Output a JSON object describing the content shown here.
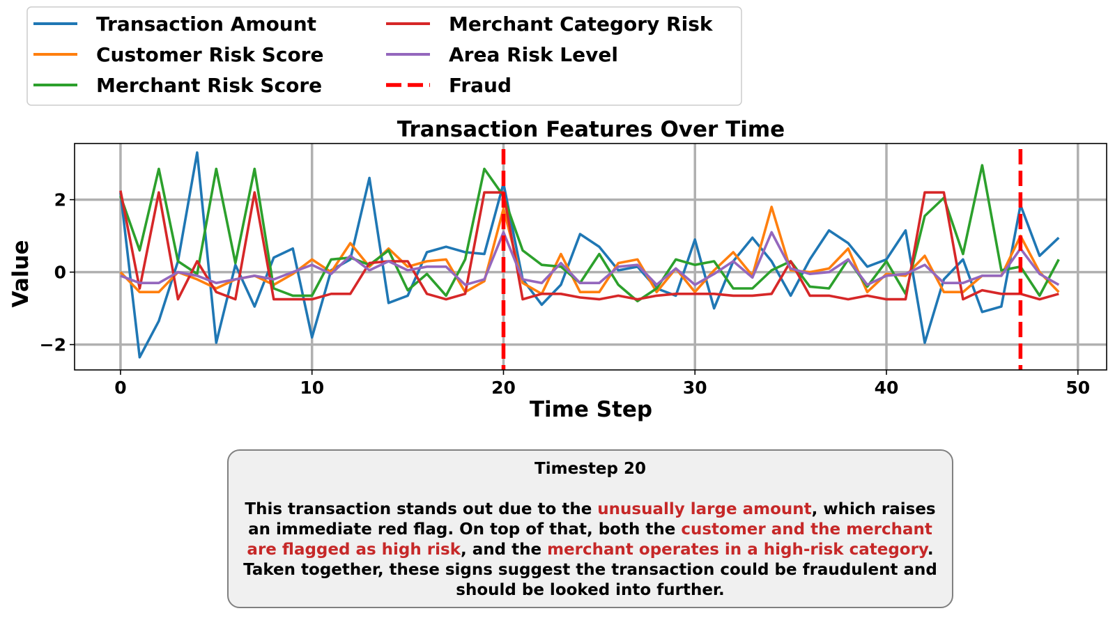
{
  "colors": {
    "Transaction Amount": "#1f77b4",
    "Customer Risk Score": "#ff7f0e",
    "Merchant Risk Score": "#2ca02c",
    "Merchant Category Risk": "#d62728",
    "Area Risk Level": "#9467bd",
    "Fraud": "#ff0000",
    "highlight_text": "#c62828",
    "annotation_bg": "#f0f0f0",
    "annotation_border": "#808080",
    "grid": "#b0b0b0"
  },
  "chart_data": {
    "type": "line",
    "title": "Transaction Features Over Time",
    "xlabel": "Time Step",
    "ylabel": "Value",
    "xlim": [
      -2.4,
      51.5
    ],
    "ylim": [
      -2.7,
      3.55
    ],
    "xticks": [
      0,
      10,
      20,
      30,
      40,
      50
    ],
    "yticks": [
      -2,
      0,
      2
    ],
    "ytick_labels": [
      "−2",
      "0",
      "2"
    ],
    "grid": true,
    "legend": {
      "placement": "top-left, above chart",
      "columns": 2,
      "entries": [
        "Transaction Amount",
        "Customer Risk Score",
        "Merchant Risk Score",
        "Merchant Category Risk",
        "Area Risk Level",
        "Fraud"
      ]
    },
    "x": [
      0,
      1,
      2,
      3,
      4,
      5,
      6,
      7,
      8,
      9,
      10,
      11,
      12,
      13,
      14,
      15,
      16,
      17,
      18,
      19,
      20,
      21,
      22,
      23,
      24,
      25,
      26,
      27,
      28,
      29,
      30,
      31,
      32,
      33,
      34,
      35,
      36,
      37,
      38,
      39,
      40,
      41,
      42,
      43,
      44,
      45,
      46,
      47,
      48,
      49
    ],
    "series": [
      {
        "name": "Transaction Amount",
        "values": [
          2.2,
          -2.35,
          -1.35,
          0.3,
          3.3,
          -1.95,
          0.2,
          -0.95,
          0.4,
          0.65,
          -1.8,
          0.05,
          0.35,
          2.6,
          -0.85,
          -0.65,
          0.55,
          0.7,
          0.55,
          0.5,
          2.45,
          -0.2,
          -0.9,
          -0.35,
          1.05,
          0.7,
          0.05,
          0.15,
          -0.45,
          -0.65,
          0.9,
          -1.0,
          0.3,
          0.95,
          0.3,
          -0.65,
          0.35,
          1.15,
          0.8,
          0.15,
          0.35,
          1.15,
          -1.95,
          -0.2,
          0.35,
          -1.1,
          -0.95,
          1.85,
          0.45,
          0.95
        ]
      },
      {
        "name": "Customer Risk Score",
        "values": [
          0.0,
          -0.55,
          -0.55,
          0.0,
          -0.2,
          -0.45,
          -0.2,
          -0.1,
          -0.35,
          -0.05,
          0.35,
          0.0,
          0.8,
          0.15,
          0.65,
          0.15,
          0.3,
          0.35,
          -0.55,
          -0.25,
          1.75,
          -0.3,
          -0.6,
          0.5,
          -0.55,
          -0.55,
          0.25,
          0.35,
          -0.55,
          0.1,
          -0.55,
          0.05,
          0.55,
          -0.1,
          1.8,
          0.05,
          0.0,
          0.1,
          0.65,
          -0.55,
          -0.05,
          -0.1,
          0.45,
          -0.55,
          -0.55,
          -0.1,
          -0.1,
          1.0,
          0.0,
          -0.55
        ]
      },
      {
        "name": "Merchant Risk Score",
        "values": [
          2.1,
          0.6,
          2.85,
          0.3,
          -0.05,
          2.85,
          0.25,
          2.85,
          -0.45,
          -0.65,
          -0.65,
          0.35,
          0.4,
          0.2,
          0.6,
          -0.5,
          -0.05,
          -0.65,
          0.35,
          2.85,
          2.1,
          0.6,
          0.2,
          0.15,
          -0.3,
          0.5,
          -0.35,
          -0.8,
          -0.45,
          0.35,
          0.2,
          0.3,
          -0.45,
          -0.45,
          0.05,
          0.3,
          -0.4,
          -0.45,
          0.35,
          -0.4,
          0.3,
          -0.6,
          1.55,
          2.05,
          0.5,
          2.95,
          0.05,
          0.15,
          -0.65,
          0.35
        ]
      },
      {
        "name": "Merchant Category Risk",
        "values": [
          2.25,
          -0.45,
          2.2,
          -0.75,
          0.3,
          -0.55,
          -0.75,
          2.2,
          -0.75,
          -0.75,
          -0.75,
          -0.6,
          -0.6,
          0.25,
          0.3,
          0.3,
          -0.6,
          -0.75,
          -0.6,
          2.2,
          2.2,
          -0.75,
          -0.6,
          -0.6,
          -0.7,
          -0.75,
          -0.65,
          -0.75,
          -0.65,
          -0.6,
          -0.6,
          -0.6,
          -0.65,
          -0.65,
          -0.6,
          0.3,
          -0.65,
          -0.65,
          -0.75,
          -0.65,
          -0.75,
          -0.75,
          2.2,
          2.2,
          -0.75,
          -0.5,
          -0.6,
          -0.6,
          -0.75,
          -0.6
        ]
      },
      {
        "name": "Area Risk Level",
        "values": [
          -0.1,
          -0.3,
          -0.3,
          0.0,
          -0.1,
          -0.3,
          -0.2,
          -0.1,
          -0.2,
          0.0,
          0.2,
          -0.05,
          0.45,
          0.05,
          0.3,
          0.05,
          0.15,
          0.15,
          -0.35,
          -0.2,
          1.1,
          -0.2,
          -0.3,
          0.25,
          -0.3,
          -0.3,
          0.15,
          0.2,
          -0.35,
          0.1,
          -0.35,
          -0.05,
          0.3,
          -0.15,
          1.1,
          0.1,
          -0.05,
          0.0,
          0.35,
          -0.35,
          -0.1,
          -0.05,
          0.2,
          -0.3,
          -0.3,
          -0.1,
          -0.1,
          0.65,
          -0.05,
          -0.35
        ]
      }
    ],
    "fraud_markers": {
      "name": "Fraud",
      "x": [
        20,
        47
      ]
    }
  },
  "annotation": {
    "title": "Timestep 20",
    "body_segments": [
      {
        "text": "This transaction stands out due to the ",
        "highlight": false
      },
      {
        "text": "unusually large amount",
        "highlight": true
      },
      {
        "text": ", which raises an immediate red flag. On top of that, both the ",
        "highlight": false
      },
      {
        "text": "customer and the merchant are flagged as high risk",
        "highlight": true
      },
      {
        "text": ", and the ",
        "highlight": false
      },
      {
        "text": "merchant operates in a high-risk category",
        "highlight": true
      },
      {
        "text": ". Taken together, these signs suggest the transaction could be fraudulent and should be looked into further.",
        "highlight": false
      }
    ]
  }
}
